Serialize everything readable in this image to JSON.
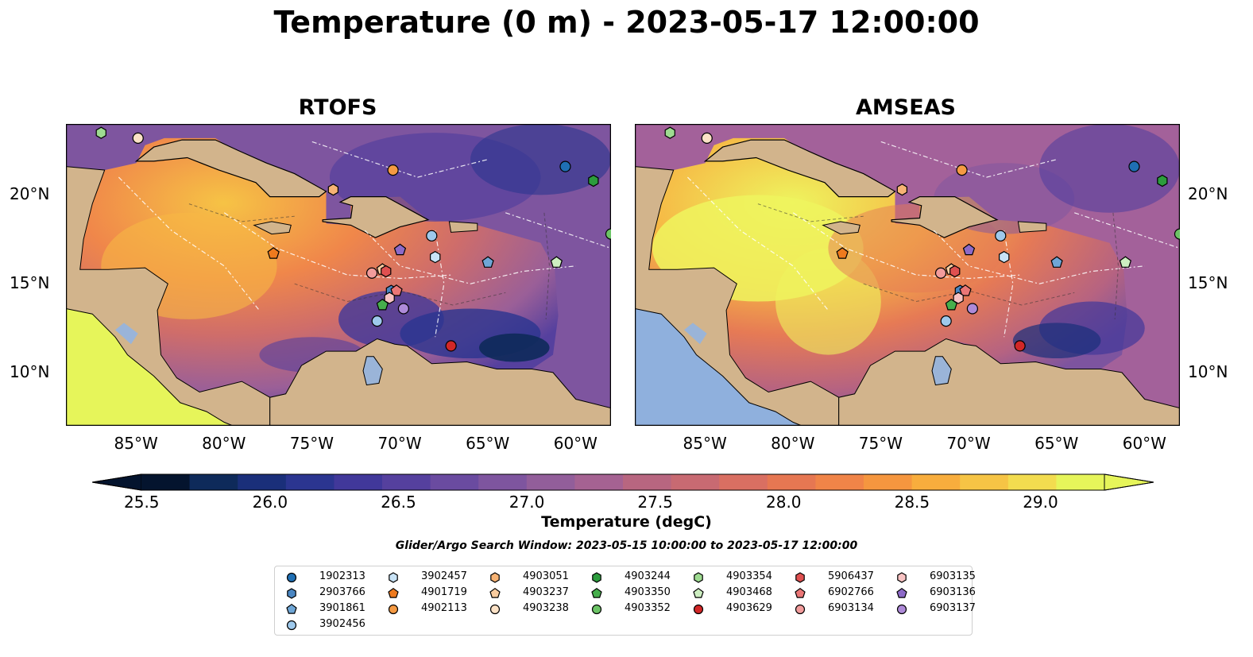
{
  "title": "Temperature (0 m) - 2023-05-17 12:00:00",
  "panels": [
    {
      "title": "RTOFS",
      "variant": "rtofs"
    },
    {
      "title": "AMSEAS",
      "variant": "amseas"
    }
  ],
  "axes": {
    "lon_ticks": [
      "85°W",
      "80°W",
      "75°W",
      "70°W",
      "65°W",
      "60°W"
    ],
    "lat_ticks": [
      "20°N",
      "15°N",
      "10°N"
    ],
    "lon_range": [
      -89,
      -58
    ],
    "lat_range": [
      7,
      24
    ]
  },
  "colorbar": {
    "label": "Temperature (degC)",
    "tick_labels": [
      "25.5",
      "26.0",
      "26.5",
      "27.0",
      "27.5",
      "28.0",
      "28.5",
      "29.0"
    ],
    "range": [
      25.5,
      29.25
    ],
    "extend": "both",
    "colors": [
      "#04142e",
      "#0e2a5a",
      "#1a2f7a",
      "#2b3590",
      "#41389a",
      "#55409e",
      "#6a4ba0",
      "#7e559f",
      "#925e9a",
      "#a56292",
      "#b86680",
      "#c86a72",
      "#d96f62",
      "#e67752",
      "#f08448",
      "#f5963f",
      "#f8ad3d",
      "#f6c445",
      "#f3dc4f",
      "#e6f55a"
    ]
  },
  "colors": {
    "land": "#d2b48c",
    "lake": "#9ab4d8",
    "pacific_amseas": "#8fb0dd",
    "pacific_rtofs": "#e6f55a"
  },
  "search_window": "Glider/Argo Search Window: 2023-05-15 10:00:00 to 2023-05-17 12:00:00",
  "legend": [
    {
      "id": "1902313",
      "marker": "circle",
      "color": "#1f6fb4"
    },
    {
      "id": "2903766",
      "marker": "hexagon",
      "color": "#4a86c2"
    },
    {
      "id": "3901861",
      "marker": "pentagon",
      "color": "#6fa6d6"
    },
    {
      "id": "3902456",
      "marker": "circle",
      "color": "#9ec9ec"
    },
    {
      "id": "3902457",
      "marker": "hexagon",
      "color": "#c8e3f6"
    },
    {
      "id": "4901719",
      "marker": "pentagon",
      "color": "#ee7a1e"
    },
    {
      "id": "4902113",
      "marker": "circle",
      "color": "#f59a43"
    },
    {
      "id": "4903051",
      "marker": "hexagon",
      "color": "#f7b374"
    },
    {
      "id": "4903237",
      "marker": "pentagon",
      "color": "#f9cc9f"
    },
    {
      "id": "4903238",
      "marker": "circle",
      "color": "#fce2c6"
    },
    {
      "id": "4903244",
      "marker": "hexagon",
      "color": "#2c9c3d"
    },
    {
      "id": "4903350",
      "marker": "pentagon",
      "color": "#46ae4c"
    },
    {
      "id": "4903352",
      "marker": "circle",
      "color": "#6cc466"
    },
    {
      "id": "4903354",
      "marker": "hexagon",
      "color": "#9edb91"
    },
    {
      "id": "4903468",
      "marker": "pentagon",
      "color": "#cdeec1"
    },
    {
      "id": "4903629",
      "marker": "circle",
      "color": "#d22727"
    },
    {
      "id": "5906437",
      "marker": "hexagon",
      "color": "#e05050"
    },
    {
      "id": "6902766",
      "marker": "pentagon",
      "color": "#ea7676"
    },
    {
      "id": "6903134",
      "marker": "circle",
      "color": "#f29c9c"
    },
    {
      "id": "6903135",
      "marker": "hexagon",
      "color": "#f8c3c3"
    },
    {
      "id": "6903136",
      "marker": "pentagon",
      "color": "#8d6ac8"
    },
    {
      "id": "6903137",
      "marker": "circle",
      "color": "#ae8ad8"
    }
  ],
  "floats": [
    {
      "id": "1902313",
      "lon": -60.6,
      "lat": 21.6
    },
    {
      "id": "2903766",
      "lon": -70.5,
      "lat": 14.6
    },
    {
      "id": "3901861",
      "lon": -65.0,
      "lat": 16.2
    },
    {
      "id": "3902456",
      "lon": -68.2,
      "lat": 17.7
    },
    {
      "id": "3902456",
      "lon": -71.3,
      "lat": 12.9
    },
    {
      "id": "3902457",
      "lon": -68.0,
      "lat": 16.5
    },
    {
      "id": "4901719",
      "lon": -77.2,
      "lat": 16.7
    },
    {
      "id": "4902113",
      "lon": -70.4,
      "lat": 21.4
    },
    {
      "id": "4903051",
      "lon": -73.8,
      "lat": 20.3
    },
    {
      "id": "4903237",
      "lon": -71.0,
      "lat": 15.8
    },
    {
      "id": "4903238",
      "lon": -84.9,
      "lat": 23.2
    },
    {
      "id": "4903244",
      "lon": -59.0,
      "lat": 20.8
    },
    {
      "id": "4903350",
      "lon": -71.0,
      "lat": 13.8
    },
    {
      "id": "4903352",
      "lon": -58.0,
      "lat": 17.8
    },
    {
      "id": "4903354",
      "lon": -87.0,
      "lat": 23.5
    },
    {
      "id": "4903468",
      "lon": -61.1,
      "lat": 16.2
    },
    {
      "id": "4903629",
      "lon": -67.1,
      "lat": 11.5
    },
    {
      "id": "5906437",
      "lon": -70.8,
      "lat": 15.7
    },
    {
      "id": "6902766",
      "lon": -70.2,
      "lat": 14.6
    },
    {
      "id": "6903134",
      "lon": -71.6,
      "lat": 15.6
    },
    {
      "id": "6903135",
      "lon": -70.6,
      "lat": 14.2
    },
    {
      "id": "6903136",
      "lon": -70.0,
      "lat": 16.9
    },
    {
      "id": "6903137",
      "lon": -69.8,
      "lat": 13.6
    }
  ]
}
